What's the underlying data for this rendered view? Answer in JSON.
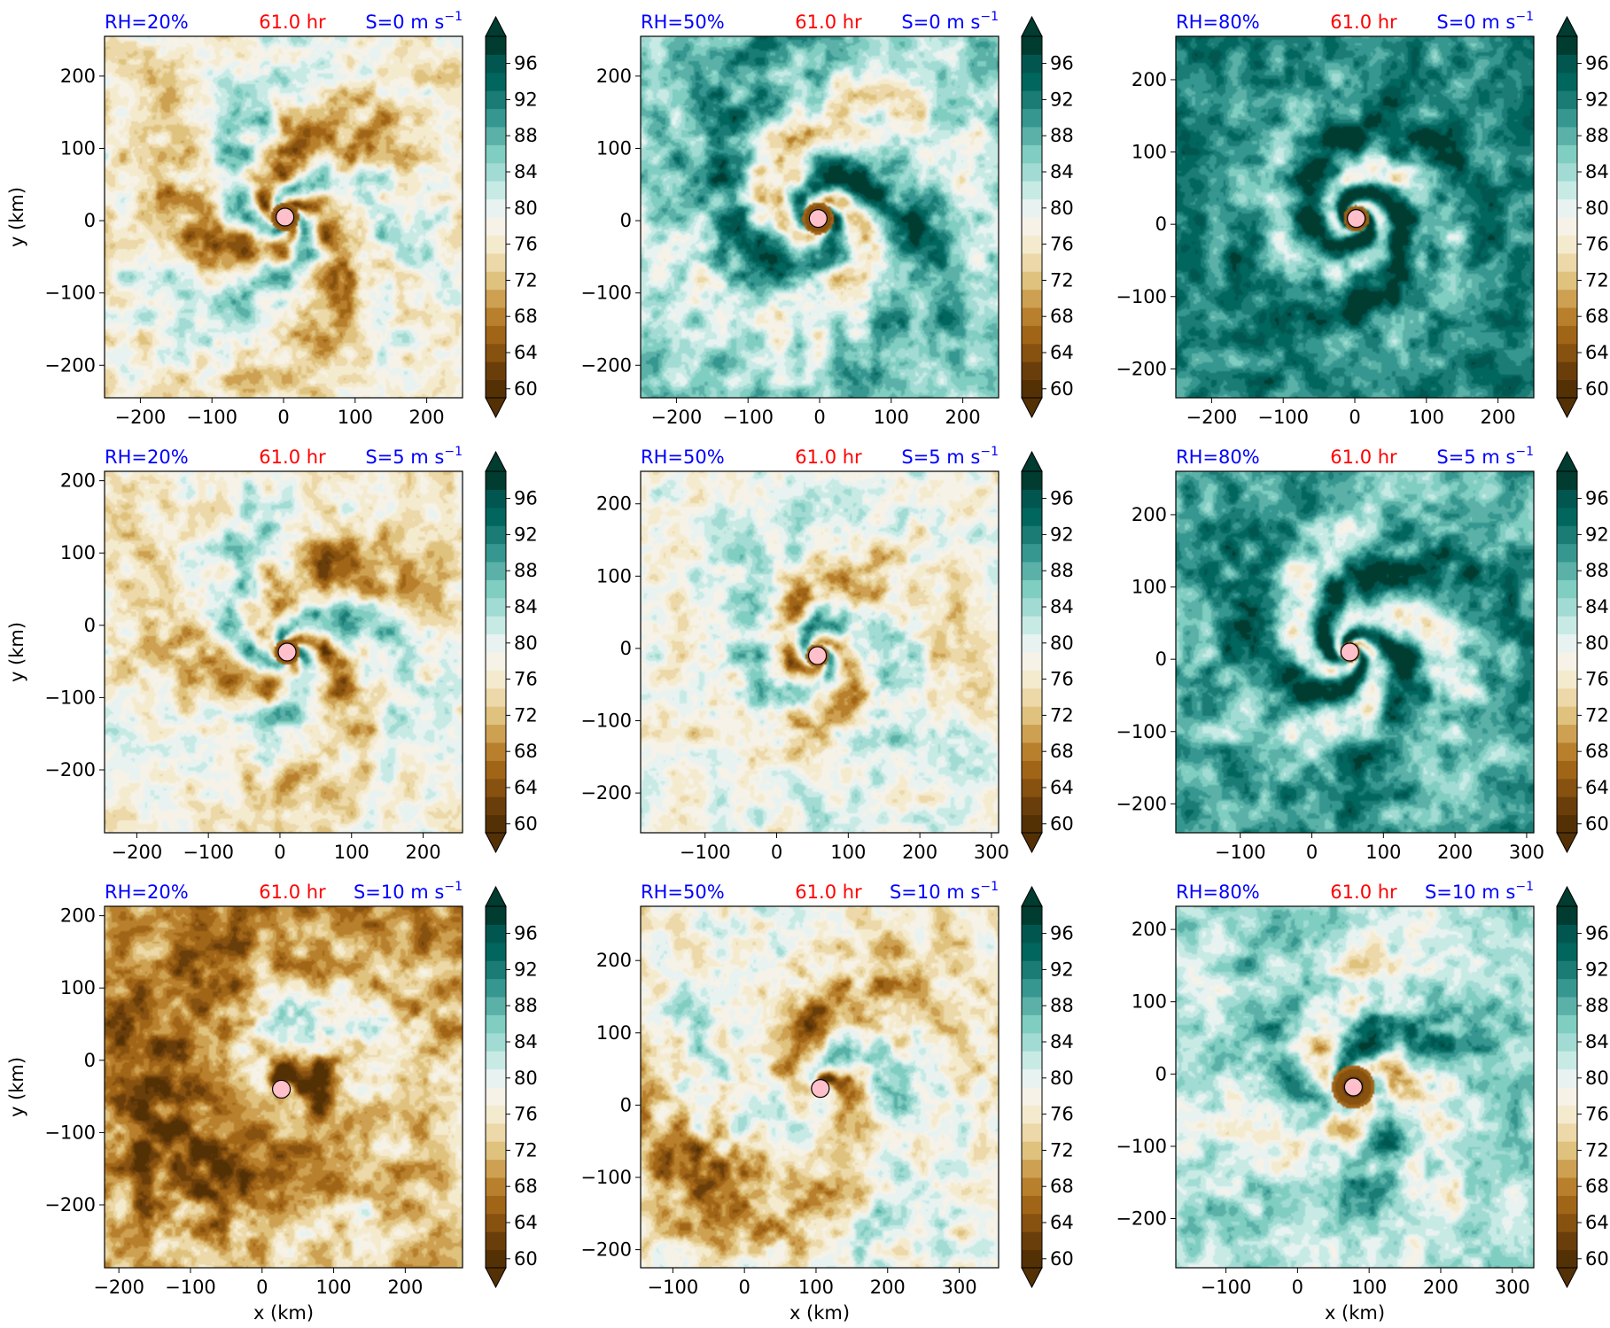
{
  "figure": {
    "rows": 3,
    "cols": 3,
    "xlabel": "x (km)",
    "ylabel": "y (km)",
    "time_label": "61.0 hr",
    "colors": {
      "title_blue": "#0000ff",
      "title_red": "#ff0000",
      "center_marker": "#ffc0cb",
      "center_marker_edge": "#000000"
    },
    "colorbar": {
      "ticks": [
        "60",
        "64",
        "68",
        "72",
        "76",
        "80",
        "84",
        "88",
        "92",
        "96"
      ],
      "levels": [
        60,
        62,
        64,
        66,
        68,
        70,
        72,
        74,
        76,
        78,
        80,
        82,
        84,
        86,
        88,
        90,
        92,
        94,
        96,
        98,
        100
      ],
      "extend": "both",
      "colormap": "BrBG",
      "colors": [
        "#543005",
        "#6a3e0a",
        "#87510f",
        "#a16518",
        "#b8802c",
        "#cda052",
        "#dfc27d",
        "#ecd8a8",
        "#f4ebcf",
        "#f6f2e8",
        "#e8f3f1",
        "#c7eae5",
        "#a2dbd3",
        "#80cdc1",
        "#5bb1a7",
        "#35978f",
        "#1a7c74",
        "#01665e",
        "#015750",
        "#003c30"
      ],
      "under": "#543005",
      "over": "#003c30"
    }
  },
  "chart_data": [
    {
      "type": "heatmap",
      "rh": "RH=20%",
      "shear": "S=0 m s",
      "exp": "−1",
      "xlim": [
        -250,
        250
      ],
      "ylim": [
        -245,
        255
      ],
      "xticks": [
        "−200",
        "−100",
        "0",
        "100",
        "200"
      ],
      "xtick_values": [
        -200,
        -100,
        0,
        100,
        200
      ],
      "yticks": [
        "−200",
        "−100",
        "0",
        "100",
        "200"
      ],
      "ytick_values": [
        -200,
        -100,
        0,
        100,
        200
      ],
      "center": [
        2,
        5
      ],
      "field": {
        "kind": "spiral",
        "arms": 3,
        "wrap": 3.2,
        "inner": 20,
        "extent": 205,
        "boost": 0.0,
        "asym": 0.15,
        "seed": 11
      }
    },
    {
      "type": "heatmap",
      "rh": "RH=50%",
      "shear": "S=0 m s",
      "exp": "−1",
      "xlim": [
        -250,
        250
      ],
      "ylim": [
        -245,
        255
      ],
      "xticks": [
        "−200",
        "−100",
        "0",
        "100",
        "200"
      ],
      "xtick_values": [
        -200,
        -100,
        0,
        100,
        200
      ],
      "yticks": [
        "−200",
        "−100",
        "0",
        "100",
        "200"
      ],
      "ytick_values": [
        -200,
        -100,
        0,
        100,
        200
      ],
      "center": [
        -2,
        3
      ],
      "field": {
        "kind": "spiral",
        "arms": 2,
        "wrap": 3.6,
        "inner": 22,
        "extent": 240,
        "boost": 0.2,
        "asym": 0.2,
        "seed": 23
      }
    },
    {
      "type": "heatmap",
      "rh": "RH=80%",
      "shear": "S=0 m s",
      "exp": "−1",
      "xlim": [
        -250,
        250
      ],
      "ylim": [
        -240,
        260
      ],
      "xticks": [
        "−200",
        "−100",
        "0",
        "100",
        "200"
      ],
      "xtick_values": [
        -200,
        -100,
        0,
        100,
        200
      ],
      "yticks": [
        "−200",
        "−100",
        "0",
        "100",
        "200"
      ],
      "ytick_values": [
        -200,
        -100,
        0,
        100,
        200
      ],
      "center": [
        2,
        8
      ],
      "field": {
        "kind": "spiral",
        "arms": 2,
        "wrap": 5.0,
        "inner": 18,
        "extent": 150,
        "boost": 0.35,
        "asym": 0.1,
        "seed": 37
      }
    },
    {
      "type": "heatmap",
      "rh": "RH=20%",
      "shear": "S=5 m s",
      "exp": "−1",
      "xlim": [
        -245,
        255
      ],
      "ylim": [
        -287,
        213
      ],
      "xticks": [
        "−200",
        "−100",
        "0",
        "100",
        "200"
      ],
      "xtick_values": [
        -200,
        -100,
        0,
        100,
        200
      ],
      "yticks": [
        "−200",
        "−100",
        "0",
        "100",
        "200"
      ],
      "ytick_values": [
        -200,
        -100,
        0,
        100,
        200
      ],
      "center": [
        10,
        -37
      ],
      "field": {
        "kind": "spiral",
        "arms": 3,
        "wrap": 3.0,
        "inner": 18,
        "extent": 190,
        "boost": 0.0,
        "asym": 0.3,
        "seed": 41
      }
    },
    {
      "type": "heatmap",
      "rh": "RH=50%",
      "shear": "S=5 m s",
      "exp": "−1",
      "xlim": [
        -190,
        310
      ],
      "ylim": [
        -255,
        245
      ],
      "xticks": [
        "−100",
        "0",
        "100",
        "200",
        "300"
      ],
      "xtick_values": [
        -100,
        0,
        100,
        200,
        300
      ],
      "yticks": [
        "−200",
        "−100",
        "0",
        "100",
        "200"
      ],
      "ytick_values": [
        -200,
        -100,
        0,
        100,
        200
      ],
      "center": [
        57,
        -10
      ],
      "field": {
        "kind": "spiral",
        "arms": 2,
        "wrap": 3.4,
        "inner": 16,
        "extent": 170,
        "boost": 0.05,
        "asym": 0.3,
        "seed": 53
      }
    },
    {
      "type": "heatmap",
      "rh": "RH=80%",
      "shear": "S=5 m s",
      "exp": "−1",
      "xlim": [
        -190,
        310
      ],
      "ylim": [
        -240,
        260
      ],
      "xticks": [
        "−100",
        "0",
        "100",
        "200",
        "300"
      ],
      "xtick_values": [
        -100,
        0,
        100,
        200,
        300
      ],
      "yticks": [
        "−200",
        "−100",
        "0",
        "100",
        "200"
      ],
      "ytick_values": [
        -200,
        -100,
        0,
        100,
        200
      ],
      "center": [
        53,
        10
      ],
      "field": {
        "kind": "spiral",
        "arms": 3,
        "wrap": 4.2,
        "inner": 14,
        "extent": 200,
        "boost": 0.3,
        "asym": 0.25,
        "seed": 67
      }
    },
    {
      "type": "heatmap",
      "rh": "RH=20%",
      "shear": "S=10 m s",
      "exp": "−1",
      "xlim": [
        -220,
        280
      ],
      "ylim": [
        -287,
        213
      ],
      "xticks": [
        "−200",
        "−100",
        "0",
        "100",
        "200"
      ],
      "xtick_values": [
        -200,
        -100,
        0,
        100,
        200
      ],
      "yticks": [
        "−200",
        "−100",
        "0",
        "100",
        "200"
      ],
      "ytick_values": [
        -200,
        -100,
        0,
        100,
        200
      ],
      "center": [
        27,
        -40
      ],
      "field": {
        "kind": "sheared",
        "arms": 1,
        "wrap": 2.2,
        "inner": 10,
        "extent": 260,
        "boost": -0.15,
        "asym": 0.9,
        "seed": 71
      }
    },
    {
      "type": "heatmap",
      "rh": "RH=50%",
      "shear": "S=10 m s",
      "exp": "−1",
      "xlim": [
        -145,
        355
      ],
      "ylim": [
        -225,
        275
      ],
      "xticks": [
        "−100",
        "0",
        "100",
        "200",
        "300"
      ],
      "xtick_values": [
        -100,
        0,
        100,
        200,
        300
      ],
      "yticks": [
        "−200",
        "−100",
        "0",
        "100",
        "200"
      ],
      "ytick_values": [
        -200,
        -100,
        0,
        100,
        200
      ],
      "center": [
        106,
        23
      ],
      "field": {
        "kind": "sheared",
        "arms": 2,
        "wrap": 2.6,
        "inner": 10,
        "extent": 200,
        "boost": 0.0,
        "asym": 0.7,
        "seed": 83
      }
    },
    {
      "type": "heatmap",
      "rh": "RH=80%",
      "shear": "S=10 m s",
      "exp": "−1",
      "xlim": [
        -170,
        330
      ],
      "ylim": [
        -268,
        232
      ],
      "xticks": [
        "−100",
        "0",
        "100",
        "200",
        "300"
      ],
      "xtick_values": [
        -100,
        0,
        100,
        200,
        300
      ],
      "yticks": [
        "−200",
        "−100",
        "0",
        "100",
        "200"
      ],
      "ytick_values": [
        -200,
        -100,
        0,
        100,
        200
      ],
      "center": [
        78,
        -18
      ],
      "field": {
        "kind": "spiral",
        "arms": 3,
        "wrap": 3.0,
        "inner": 30,
        "extent": 190,
        "boost": 0.15,
        "asym": 0.45,
        "seed": 97
      }
    }
  ]
}
